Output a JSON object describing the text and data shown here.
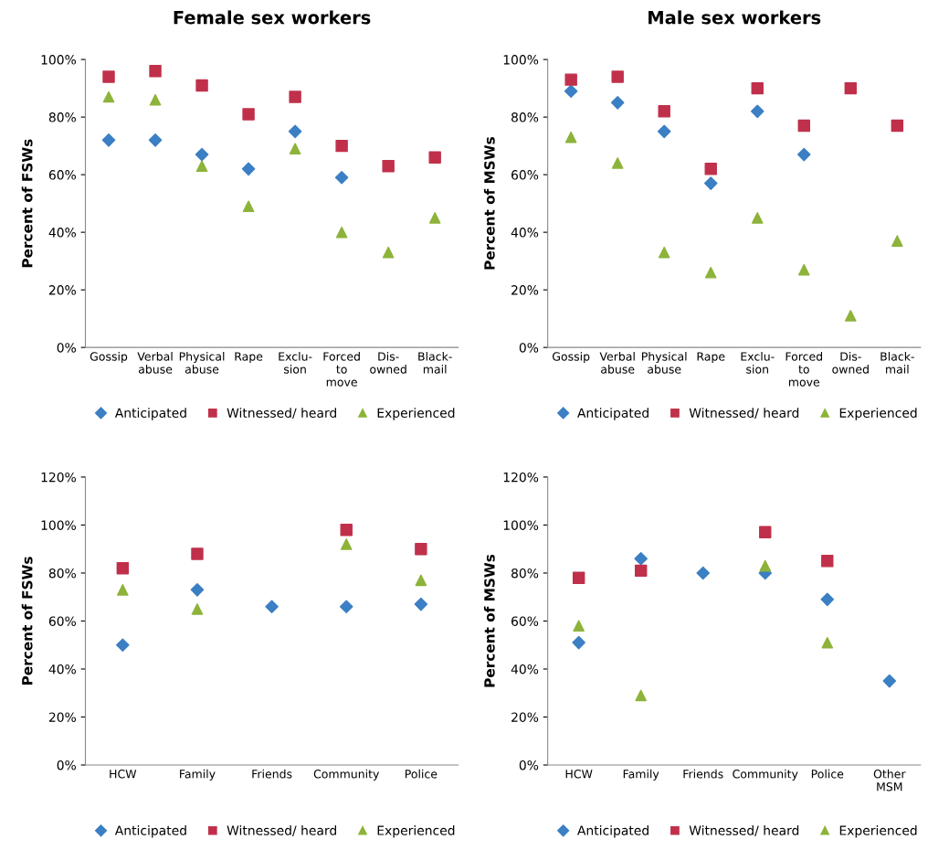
{
  "chart_data": [
    {
      "type": "scatter",
      "title": "Female sex workers",
      "ylabel": "Percent of FSWs",
      "categories": [
        "Gossip",
        "Verbal\nabuse",
        "Physical\nabuse",
        "Rape",
        "Exclu-\nsion",
        "Forced\nto\nmove",
        "Dis-\nowned",
        "Black-\nmail"
      ],
      "series": [
        {
          "name": "Anticipated",
          "color": "#3b7fc4",
          "marker": "diamond",
          "values": [
            72,
            72,
            67,
            62,
            75,
            59,
            null,
            null
          ]
        },
        {
          "name": "Witnessed/ heard",
          "color": "#c0304a",
          "marker": "square",
          "values": [
            94,
            96,
            91,
            81,
            87,
            70,
            63,
            66
          ]
        },
        {
          "name": "Experienced",
          "color": "#8db33a",
          "marker": "triangle",
          "values": [
            87,
            86,
            63,
            49,
            69,
            40,
            33,
            45
          ]
        }
      ],
      "ylim": [
        0,
        100
      ],
      "yticks": [
        {
          "value": 0,
          "label": "0%"
        },
        {
          "value": 20,
          "label": "20%"
        },
        {
          "value": 40,
          "label": "40%"
        },
        {
          "value": 60,
          "label": "60%"
        },
        {
          "value": 80,
          "label": "80%"
        },
        {
          "value": 100,
          "label": "100%"
        }
      ],
      "grid": false,
      "legend": "bottom"
    },
    {
      "type": "scatter",
      "title": "Male sex workers",
      "ylabel": "Percent of MSWs",
      "categories": [
        "Gossip",
        "Verbal\nabuse",
        "Physical\nabuse",
        "Rape",
        "Exclu-\nsion",
        "Forced\nto\nmove",
        "Dis-\nowned",
        "Black-\nmail"
      ],
      "series": [
        {
          "name": "Anticipated",
          "color": "#3b7fc4",
          "marker": "diamond",
          "values": [
            89,
            85,
            75,
            57,
            82,
            67,
            null,
            null
          ]
        },
        {
          "name": "Witnessed/ heard",
          "color": "#c0304a",
          "marker": "square",
          "values": [
            93,
            94,
            82,
            62,
            90,
            77,
            90,
            77
          ]
        },
        {
          "name": "Experienced",
          "color": "#8db33a",
          "marker": "triangle",
          "values": [
            73,
            64,
            33,
            26,
            45,
            27,
            11,
            37
          ]
        }
      ],
      "ylim": [
        0,
        100
      ],
      "yticks": [
        {
          "value": 0,
          "label": "0%"
        },
        {
          "value": 20,
          "label": "20%"
        },
        {
          "value": 40,
          "label": "40%"
        },
        {
          "value": 60,
          "label": "60%"
        },
        {
          "value": 80,
          "label": "80%"
        },
        {
          "value": 100,
          "label": "100%"
        }
      ],
      "grid": false,
      "legend": "bottom"
    },
    {
      "type": "scatter",
      "ylabel": "Percent of FSWs",
      "categories": [
        "HCW",
        "Family",
        "Friends",
        "Community",
        "Police"
      ],
      "series": [
        {
          "name": "Anticipated",
          "color": "#3b7fc4",
          "marker": "diamond",
          "values": [
            50,
            73,
            66,
            66,
            67
          ]
        },
        {
          "name": "Witnessed/ heard",
          "color": "#c0304a",
          "marker": "square",
          "values": [
            82,
            88,
            null,
            98,
            90
          ]
        },
        {
          "name": "Experienced",
          "color": "#8db33a",
          "marker": "triangle",
          "values": [
            73,
            65,
            null,
            92,
            77
          ]
        }
      ],
      "ylim": [
        0,
        120
      ],
      "yticks": [
        {
          "value": 0,
          "label": "0%"
        },
        {
          "value": 20,
          "label": "20%"
        },
        {
          "value": 40,
          "label": "40%"
        },
        {
          "value": 60,
          "label": "60%"
        },
        {
          "value": 80,
          "label": "80%"
        },
        {
          "value": 100,
          "label": "100%"
        },
        {
          "value": 120,
          "label": "120%"
        }
      ],
      "grid": false,
      "legend": "bottom"
    },
    {
      "type": "scatter",
      "ylabel": "Percent of MSWs",
      "categories": [
        "HCW",
        "Family",
        "Friends",
        "Community",
        "Police",
        "Other\nMSM"
      ],
      "series": [
        {
          "name": "Anticipated",
          "color": "#3b7fc4",
          "marker": "diamond",
          "values": [
            51,
            86,
            80,
            80,
            69,
            35
          ]
        },
        {
          "name": "Witnessed/ heard",
          "color": "#c0304a",
          "marker": "square",
          "values": [
            78,
            81,
            null,
            97,
            85,
            null
          ]
        },
        {
          "name": "Experienced",
          "color": "#8db33a",
          "marker": "triangle",
          "values": [
            58,
            29,
            null,
            83,
            51,
            null
          ]
        }
      ],
      "ylim": [
        0,
        120
      ],
      "yticks": [
        {
          "value": 0,
          "label": "0%"
        },
        {
          "value": 20,
          "label": "20%"
        },
        {
          "value": 40,
          "label": "40%"
        },
        {
          "value": 60,
          "label": "60%"
        },
        {
          "value": 80,
          "label": "80%"
        },
        {
          "value": 100,
          "label": "100%"
        },
        {
          "value": 120,
          "label": "120%"
        }
      ],
      "grid": false,
      "legend": "bottom"
    }
  ]
}
